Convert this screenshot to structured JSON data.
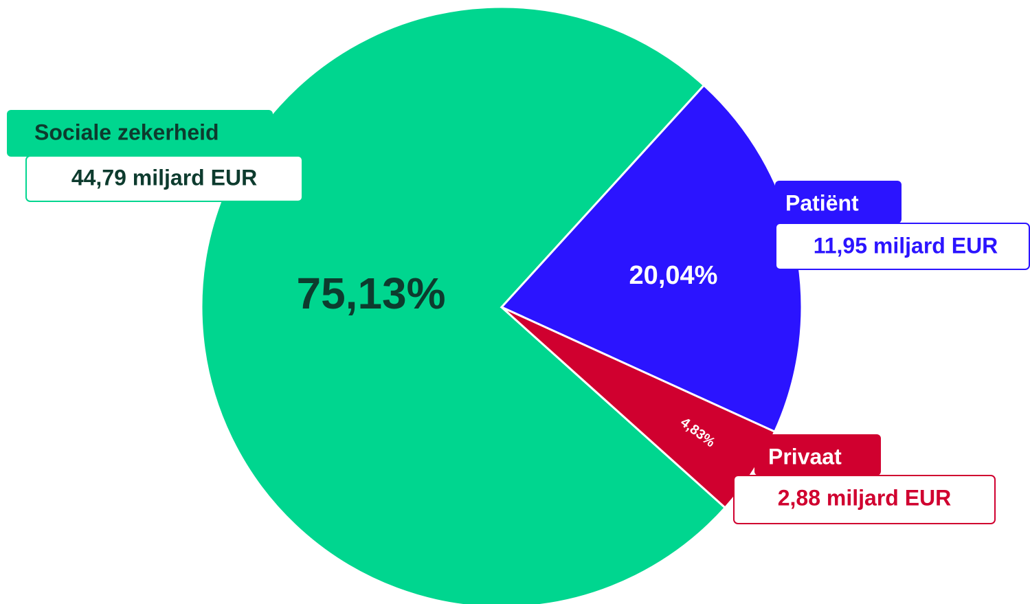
{
  "chart_data": {
    "type": "pie",
    "categories": [
      "Sociale zekerheid",
      "Patiënt",
      "Privaat"
    ],
    "values": [
      75.13,
      20.04,
      4.83
    ],
    "value_labels": [
      "75,13%",
      "20,04%",
      "4,83%"
    ],
    "amounts": [
      44.79,
      11.95,
      2.88
    ],
    "amount_labels": [
      "44,79 miljard EUR",
      "11,95 miljard EUR",
      "2,88 miljard EUR"
    ],
    "colors": [
      "#00d68f",
      "#2b14ff",
      "#d0002f"
    ]
  }
}
